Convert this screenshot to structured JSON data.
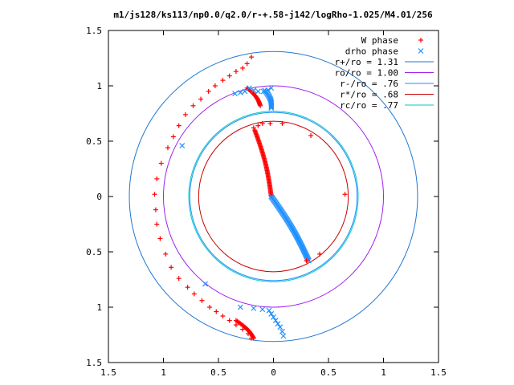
{
  "chart_data": {
    "type": "scatter",
    "title": "m1/js128/ks113/np0.0/q2.0/r-+.58-j142/logRho-1.025/M4.01/256",
    "xlabel": "",
    "ylabel": "",
    "xlim": [
      -1.5,
      1.5
    ],
    "ylim": [
      -1.5,
      1.5
    ],
    "x_ticks": [
      -1.5,
      -1,
      -0.5,
      0,
      0.5,
      1,
      1.5
    ],
    "y_ticks": [
      -1.5,
      -1,
      -0.5,
      0,
      0.5,
      1,
      1.5
    ],
    "x_tick_labels": [
      "1.5",
      "1",
      "0.5",
      "0",
      "0.5",
      "1",
      "1.5"
    ],
    "y_tick_labels": [
      "1.5",
      "1",
      "0.5",
      "0",
      "0.5",
      "1",
      "1.5"
    ],
    "grid": false,
    "legend_position": "top-right",
    "series": [
      {
        "name": "W phase",
        "marker": "plus",
        "color": "#ff0000",
        "points": [
          [
            -0.2,
            1.26
          ],
          [
            -0.24,
            1.2
          ],
          [
            -0.28,
            1.16
          ],
          [
            -0.34,
            1.13
          ],
          [
            -0.4,
            1.09
          ],
          [
            -0.46,
            1.05
          ],
          [
            -0.53,
            1.0
          ],
          [
            -0.59,
            0.95
          ],
          [
            -0.66,
            0.88
          ],
          [
            -0.73,
            0.82
          ],
          [
            -0.8,
            0.74
          ],
          [
            -0.86,
            0.64
          ],
          [
            -0.91,
            0.54
          ],
          [
            -0.96,
            0.44
          ],
          [
            -1.02,
            0.3
          ],
          [
            -1.06,
            0.16
          ],
          [
            -1.08,
            0.02
          ],
          [
            -1.07,
            -0.12
          ],
          [
            -1.06,
            -0.25
          ],
          [
            -1.03,
            -0.38
          ],
          [
            -0.98,
            -0.52
          ],
          [
            -0.93,
            -0.64
          ],
          [
            -0.86,
            -0.74
          ],
          [
            -0.78,
            -0.82
          ],
          [
            -0.72,
            -0.88
          ],
          [
            -0.65,
            -0.94
          ],
          [
            -0.58,
            -1.0
          ],
          [
            -0.52,
            -1.04
          ],
          [
            -0.46,
            -1.08
          ],
          [
            -0.4,
            -1.12
          ],
          [
            -0.34,
            -1.16
          ],
          [
            -0.28,
            -1.2
          ],
          [
            -0.23,
            -1.24
          ],
          [
            -0.2,
            -1.28
          ],
          [
            -0.18,
            0.62
          ],
          [
            -0.14,
            0.64
          ],
          [
            -0.1,
            0.66
          ],
          [
            -0.03,
            0.66
          ],
          [
            0.08,
            0.66
          ],
          [
            0.34,
            0.55
          ],
          [
            0.65,
            0.02
          ],
          [
            0.42,
            -0.52
          ],
          [
            0.3,
            -0.58
          ]
        ]
      },
      {
        "name": "drho phase",
        "marker": "cross",
        "color": "#1e90ff",
        "points": [
          [
            -0.02,
            0.98
          ],
          [
            -0.05,
            0.96
          ],
          [
            -0.09,
            0.95
          ],
          [
            -0.14,
            0.95
          ],
          [
            -0.18,
            0.96
          ],
          [
            -0.22,
            0.98
          ],
          [
            -0.26,
            0.95
          ],
          [
            -0.3,
            0.94
          ],
          [
            -0.35,
            0.93
          ],
          [
            -0.83,
            0.46
          ],
          [
            -0.62,
            -0.79
          ],
          [
            -0.3,
            -1.0
          ],
          [
            -0.18,
            -1.01
          ],
          [
            -0.1,
            -1.02
          ],
          [
            -0.04,
            -1.03
          ],
          [
            -0.02,
            -1.06
          ],
          [
            0.0,
            -1.09
          ],
          [
            0.02,
            -1.12
          ],
          [
            0.04,
            -1.15
          ],
          [
            0.06,
            -1.18
          ],
          [
            0.08,
            -1.22
          ],
          [
            0.09,
            -1.26
          ]
        ]
      }
    ],
    "circles": [
      {
        "name": "r+/ro = 1.31",
        "radius": 1.31,
        "color": "#1f77d4"
      },
      {
        "name": "ro/ro = 1.00",
        "radius": 1.0,
        "color": "#a020f0"
      },
      {
        "name": "r-/ro = .76",
        "radius": 0.76,
        "color": "#1e90ff"
      },
      {
        "name": "r*/ro = .68",
        "radius": 0.68,
        "color": "#cc0000"
      },
      {
        "name": "rc/ro = .77",
        "radius": 0.77,
        "color": "#00c8c8"
      }
    ],
    "bands": [
      {
        "series": "W phase",
        "x_start": -0.24,
        "x_end": -0.12,
        "y_top": 0.98,
        "y_bottom": 0.82,
        "note_hidden": false
      },
      {
        "series": "W phase",
        "x_start": -0.17,
        "x_end": -0.02,
        "y_top": 0.6,
        "y_bottom": 0.0
      },
      {
        "series": "drho phase",
        "x_start": -0.02,
        "x_end": 0.32,
        "y_top": 0.0,
        "y_bottom": -0.58
      },
      {
        "series": "drho phase",
        "x_start": -0.08,
        "x_end": -0.02,
        "y_top": 0.96,
        "y_bottom": 0.8
      },
      {
        "series": "W phase",
        "x_start": -0.34,
        "x_end": -0.18,
        "y_top": -1.12,
        "y_bottom": -1.28
      }
    ]
  }
}
